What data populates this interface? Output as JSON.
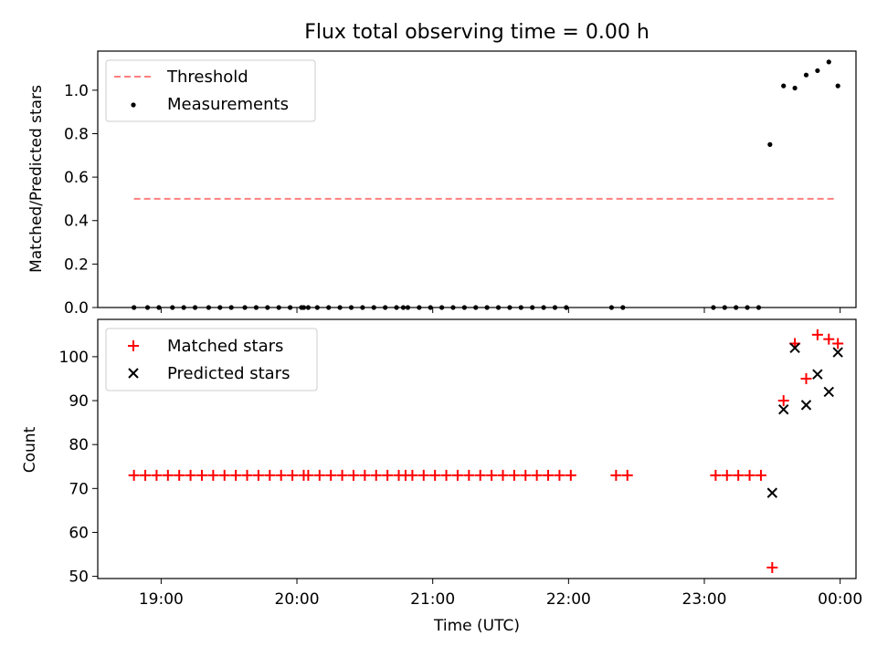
{
  "title": "Flux total observing time = 0.00 h",
  "chart_data": [
    {
      "type": "scatter",
      "panel": "top",
      "ylabel": "Matched/Predicted stars",
      "ylim": [
        0,
        1.18
      ],
      "xlim": [
        "18:32",
        "00:07"
      ],
      "y_ticks": [
        "0.0",
        "0.2",
        "0.4",
        "0.6",
        "0.8",
        "1.0"
      ],
      "legend_position": "upper left",
      "threshold": {
        "name": "Threshold",
        "value": 0.5,
        "x_range": [
          "18:48",
          "23:58"
        ],
        "color": "#ff7f7f",
        "style": "dashed"
      },
      "series": [
        {
          "name": "Measurements",
          "color": "#000000",
          "marker": "dot",
          "x": [
            "18:48",
            "18:54",
            "18:59",
            "19:05",
            "19:10",
            "19:15",
            "19:21",
            "19:26",
            "19:31",
            "19:37",
            "19:42",
            "19:47",
            "19:52",
            "19:57",
            "20:02",
            "20:03",
            "20:05",
            "20:09",
            "20:14",
            "20:19",
            "20:24",
            "20:29",
            "20:34",
            "20:39",
            "20:44",
            "20:47",
            "20:49",
            "20:54",
            "20:59",
            "21:04",
            "21:09",
            "21:14",
            "21:19",
            "21:24",
            "21:29",
            "21:34",
            "21:39",
            "21:44",
            "21:49",
            "21:54",
            "21:59",
            "22:19",
            "22:24",
            "23:04",
            "23:09",
            "23:14",
            "23:19",
            "23:24",
            "23:29",
            "23:35",
            "23:40",
            "23:45",
            "23:50",
            "23:55",
            "23:59"
          ],
          "y": [
            0,
            0,
            0,
            0,
            0,
            0,
            0,
            0,
            0,
            0,
            0,
            0,
            0,
            0,
            0,
            0,
            0,
            0,
            0,
            0,
            0,
            0,
            0,
            0,
            0,
            0,
            0,
            0,
            0,
            0,
            0,
            0,
            0,
            0,
            0,
            0,
            0,
            0,
            0,
            0,
            0,
            0,
            0,
            0,
            0,
            0,
            0,
            0,
            0.75,
            1.02,
            1.01,
            1.07,
            1.09,
            1.13,
            1.02
          ]
        }
      ]
    },
    {
      "type": "scatter",
      "panel": "bottom",
      "xlabel": "Time (UTC)",
      "ylabel": "Count",
      "ylim": [
        49.5,
        108.5
      ],
      "xlim": [
        "18:32",
        "00:07"
      ],
      "x_ticks": [
        "19:00",
        "20:00",
        "21:00",
        "22:00",
        "23:00",
        "00:00"
      ],
      "y_ticks": [
        "50",
        "60",
        "70",
        "80",
        "90",
        "100"
      ],
      "legend_position": "upper left",
      "series": [
        {
          "name": "Matched stars",
          "color": "#ff0000",
          "marker": "plus",
          "x": [
            "18:48",
            "18:53",
            "18:58",
            "19:03",
            "19:08",
            "19:13",
            "19:18",
            "19:23",
            "19:28",
            "19:33",
            "19:38",
            "19:43",
            "19:48",
            "19:53",
            "19:58",
            "20:03",
            "20:05",
            "20:10",
            "20:15",
            "20:20",
            "20:25",
            "20:30",
            "20:35",
            "20:40",
            "20:45",
            "20:48",
            "20:51",
            "20:56",
            "21:01",
            "21:06",
            "21:11",
            "21:16",
            "21:21",
            "21:26",
            "21:31",
            "21:36",
            "21:41",
            "21:46",
            "21:51",
            "21:56",
            "22:01",
            "22:21",
            "22:26",
            "23:05",
            "23:10",
            "23:15",
            "23:20",
            "23:25",
            "23:30",
            "23:35",
            "23:40",
            "23:45",
            "23:50",
            "23:55",
            "23:59"
          ],
          "y": [
            73,
            73,
            73,
            73,
            73,
            73,
            73,
            73,
            73,
            73,
            73,
            73,
            73,
            73,
            73,
            73,
            73,
            73,
            73,
            73,
            73,
            73,
            73,
            73,
            73,
            73,
            73,
            73,
            73,
            73,
            73,
            73,
            73,
            73,
            73,
            73,
            73,
            73,
            73,
            73,
            73,
            73,
            73,
            73,
            73,
            73,
            73,
            73,
            52,
            90,
            103,
            95,
            105,
            104,
            103
          ]
        },
        {
          "name": "Predicted stars",
          "color": "#000000",
          "marker": "x",
          "x": [
            "23:30",
            "23:35",
            "23:40",
            "23:45",
            "23:50",
            "23:55",
            "23:59"
          ],
          "y": [
            69,
            88,
            102,
            89,
            96,
            92,
            101
          ]
        }
      ]
    }
  ]
}
